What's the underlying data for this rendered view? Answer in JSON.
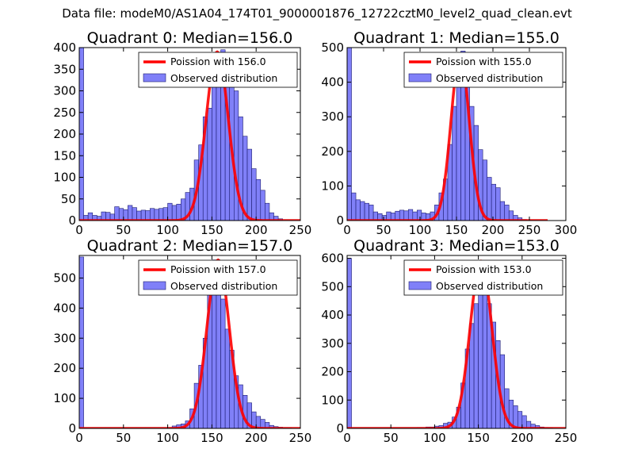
{
  "figure": {
    "suptitle": "Data file: modeM0/AS1A04_174T01_9000001876_12722cztM0_level2_quad_clean.evt"
  },
  "colors": {
    "bar_fill": "#8080f8",
    "bar_edge": "#1c1c70",
    "poisson": "#ff0000"
  },
  "chart_data": [
    {
      "type": "bar",
      "title": "Quadrant 0: Median=156.0",
      "median": 156.0,
      "xlim": [
        0,
        250
      ],
      "ylim": [
        0,
        400
      ],
      "xticks": [
        0,
        50,
        100,
        150,
        200,
        250
      ],
      "yticks": [
        0,
        50,
        100,
        150,
        200,
        250,
        300,
        350,
        400
      ],
      "bin_width": 5,
      "legend": {
        "location": "top-right",
        "line_label": "Poission with 156.0",
        "bar_label": "Observed distribution"
      },
      "bins": {
        "x": [
          0,
          5,
          10,
          15,
          20,
          25,
          30,
          35,
          40,
          45,
          50,
          55,
          60,
          65,
          70,
          75,
          80,
          85,
          90,
          95,
          100,
          105,
          110,
          115,
          120,
          125,
          130,
          135,
          140,
          145,
          150,
          155,
          160,
          165,
          170,
          175,
          180,
          185,
          190,
          195,
          200,
          205,
          210,
          215,
          220,
          225
        ],
        "counts": [
          400,
          12,
          18,
          12,
          10,
          20,
          19,
          15,
          32,
          28,
          25,
          35,
          30,
          22,
          24,
          23,
          28,
          26,
          28,
          30,
          40,
          35,
          38,
          50,
          65,
          75,
          140,
          175,
          240,
          260,
          330,
          385,
          395,
          365,
          330,
          300,
          240,
          195,
          165,
          120,
          95,
          70,
          40,
          18,
          10,
          4
        ]
      },
      "poisson": {
        "mean": 156.0,
        "peak": 390
      }
    },
    {
      "type": "bar",
      "title": "Quadrant 1: Median=155.0",
      "median": 155.0,
      "xlim": [
        0,
        300
      ],
      "ylim": [
        0,
        500
      ],
      "xticks": [
        0,
        50,
        100,
        150,
        200,
        250,
        300
      ],
      "yticks": [
        0,
        100,
        200,
        300,
        400,
        500
      ],
      "bin_width": 6,
      "legend": {
        "location": "top-right",
        "line_label": "Poission with 155.0",
        "bar_label": "Observed distribution"
      },
      "bins": {
        "x": [
          0,
          6,
          12,
          18,
          24,
          30,
          36,
          42,
          48,
          54,
          60,
          66,
          72,
          78,
          84,
          90,
          96,
          102,
          108,
          114,
          120,
          126,
          132,
          138,
          144,
          150,
          156,
          162,
          168,
          174,
          180,
          186,
          192,
          198,
          204,
          210,
          216,
          222,
          228,
          234,
          240
        ],
        "counts": [
          500,
          80,
          60,
          55,
          50,
          45,
          25,
          20,
          15,
          25,
          22,
          27,
          30,
          28,
          32,
          25,
          30,
          22,
          20,
          25,
          45,
          80,
          120,
          220,
          330,
          435,
          490,
          420,
          330,
          275,
          205,
          175,
          125,
          105,
          95,
          55,
          45,
          28,
          15,
          8,
          3
        ]
      },
      "poisson": {
        "mean": 155.0,
        "peak": 480
      }
    },
    {
      "type": "bar",
      "title": "Quadrant 2: Median=157.0",
      "median": 157.0,
      "xlim": [
        0,
        250
      ],
      "ylim": [
        0,
        575
      ],
      "xticks": [
        0,
        50,
        100,
        150,
        200,
        250
      ],
      "yticks": [
        0,
        100,
        200,
        300,
        400,
        500
      ],
      "bin_width": 5,
      "legend": {
        "location": "top-right",
        "line_label": "Poission with 157.0",
        "bar_label": "Observed distribution"
      },
      "bins": {
        "x": [
          0,
          5,
          10,
          15,
          20,
          25,
          30,
          35,
          40,
          45,
          50,
          55,
          60,
          65,
          70,
          75,
          80,
          85,
          90,
          95,
          100,
          105,
          110,
          115,
          120,
          125,
          130,
          135,
          140,
          145,
          150,
          155,
          160,
          165,
          170,
          175,
          180,
          185,
          190,
          195,
          200,
          205,
          210,
          215,
          220,
          225,
          230,
          235
        ],
        "counts": [
          570,
          2,
          2,
          2,
          2,
          2,
          2,
          2,
          2,
          2,
          2,
          2,
          2,
          2,
          2,
          2,
          2,
          2,
          2,
          2,
          3,
          8,
          12,
          15,
          25,
          65,
          150,
          210,
          300,
          460,
          560,
          530,
          430,
          330,
          260,
          175,
          145,
          110,
          85,
          55,
          40,
          30,
          20,
          10,
          6,
          4,
          2,
          2
        ]
      },
      "poisson": {
        "mean": 157.0,
        "peak": 560
      }
    },
    {
      "type": "bar",
      "title": "Quadrant 3: Median=153.0",
      "median": 153.0,
      "xlim": [
        0,
        250
      ],
      "ylim": [
        0,
        610
      ],
      "xticks": [
        0,
        50,
        100,
        150,
        200,
        250
      ],
      "yticks": [
        0,
        100,
        200,
        300,
        400,
        500,
        600
      ],
      "bin_width": 5,
      "legend": {
        "location": "top-right",
        "line_label": "Poission with 153.0",
        "bar_label": "Observed distribution"
      },
      "bins": {
        "x": [
          0,
          5,
          10,
          15,
          20,
          25,
          30,
          35,
          40,
          45,
          50,
          55,
          60,
          65,
          70,
          75,
          80,
          85,
          90,
          95,
          100,
          105,
          110,
          115,
          120,
          125,
          130,
          135,
          140,
          145,
          150,
          155,
          160,
          165,
          170,
          175,
          180,
          185,
          190,
          195,
          200,
          205,
          210,
          215,
          220,
          225,
          230
        ],
        "counts": [
          600,
          2,
          2,
          2,
          2,
          2,
          2,
          2,
          2,
          2,
          2,
          2,
          2,
          2,
          2,
          2,
          3,
          3,
          5,
          5,
          8,
          10,
          18,
          22,
          40,
          75,
          160,
          280,
          370,
          440,
          505,
          590,
          440,
          375,
          310,
          260,
          140,
          100,
          80,
          60,
          45,
          25,
          15,
          10,
          5,
          3,
          2
        ]
      },
      "poisson": {
        "mean": 153.0,
        "peak": 590
      }
    }
  ]
}
